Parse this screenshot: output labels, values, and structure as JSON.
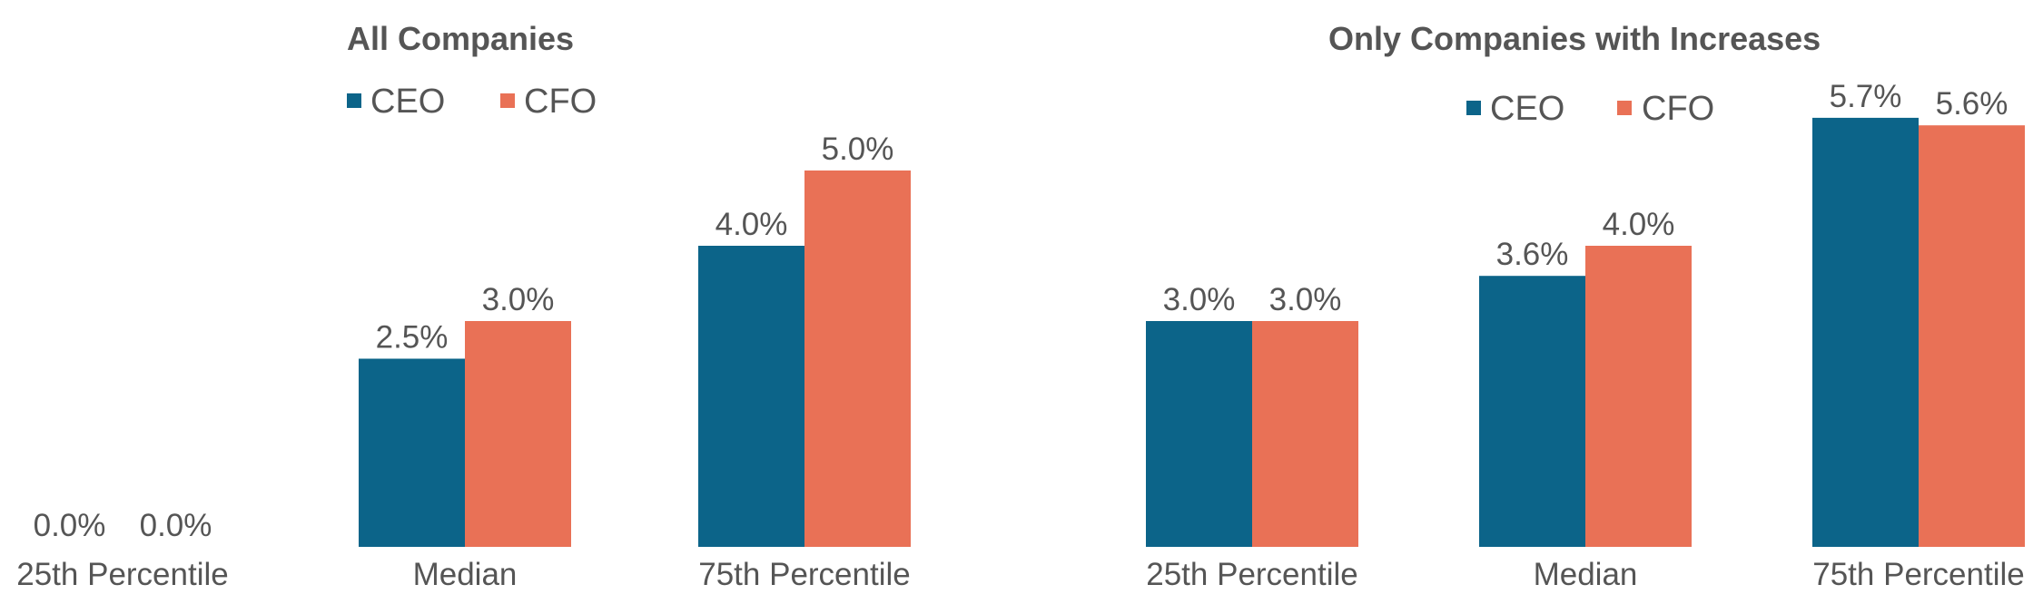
{
  "colors": {
    "ceo": "#0c6489",
    "cfo": "#e97156"
  },
  "chart_data": [
    {
      "type": "bar",
      "title": "All Companies",
      "categories": [
        "25th Percentile",
        "Median",
        "75th Percentile"
      ],
      "series": [
        {
          "name": "CEO",
          "values": [
            0.0,
            2.5,
            4.0
          ],
          "labels": [
            "0.0%",
            "2.5%",
            "4.0%"
          ]
        },
        {
          "name": "CFO",
          "values": [
            0.0,
            3.0,
            5.0
          ],
          "labels": [
            "0.0%",
            "3.0%",
            "5.0%"
          ]
        }
      ],
      "ylim": [
        0,
        6.6
      ],
      "legend": "top",
      "grid": false
    },
    {
      "type": "bar",
      "title": "Only Companies with Increases",
      "categories": [
        "25th Percentile",
        "Median",
        "75th Percentile"
      ],
      "series": [
        {
          "name": "CEO",
          "values": [
            3.0,
            3.6,
            5.7
          ],
          "labels": [
            "3.0%",
            "3.6%",
            "5.7%"
          ]
        },
        {
          "name": "CFO",
          "values": [
            3.0,
            4.0,
            5.6
          ],
          "labels": [
            "3.0%",
            "4.0%",
            "5.6%"
          ]
        }
      ],
      "ylim": [
        0,
        6.6
      ],
      "legend": "top",
      "grid": false
    }
  ]
}
